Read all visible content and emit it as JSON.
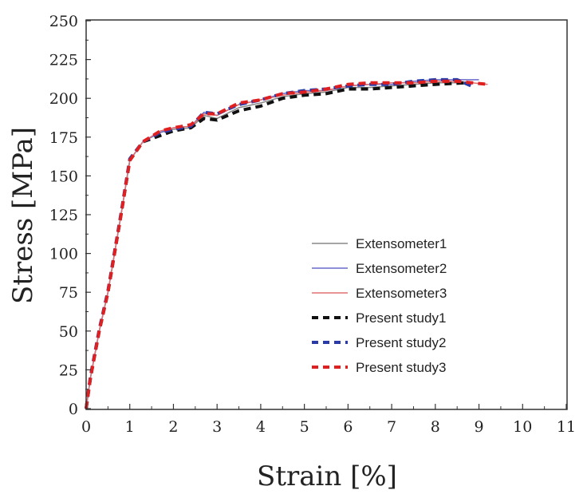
{
  "chart_data": {
    "type": "line",
    "xlabel": "Strain [%]",
    "ylabel": "Stress [MPa]",
    "xlim": [
      0,
      11
    ],
    "ylim": [
      0,
      250
    ],
    "xticks": [
      "0",
      "1",
      "2",
      "3",
      "4",
      "5",
      "6",
      "7",
      "8",
      "9",
      "10",
      "11"
    ],
    "yticks": [
      "0",
      "25",
      "50",
      "75",
      "100",
      "125",
      "150",
      "175",
      "200",
      "225",
      "250"
    ],
    "grid": false,
    "legend_position": "bottom-right",
    "series": [
      {
        "name": "Extensometer1",
        "color": "#888888",
        "style": "solid",
        "x": [
          0,
          0.1,
          0.3,
          0.5,
          0.8,
          1.0,
          1.3,
          1.7,
          2.0,
          2.4,
          2.7,
          3.0,
          3.5,
          4.0,
          4.5,
          5.0,
          5.5,
          6.0,
          6.5,
          7.0,
          7.5,
          8.0,
          8.7
        ],
        "y": [
          0,
          20,
          50,
          75,
          125,
          160,
          172,
          178,
          180,
          181,
          189,
          187,
          194,
          197,
          201,
          203,
          204,
          207,
          207,
          208,
          209,
          210,
          210
        ]
      },
      {
        "name": "Extensometer2",
        "color": "#6a6acc",
        "style": "solid",
        "x": [
          0,
          0.1,
          0.3,
          0.5,
          0.8,
          1.0,
          1.3,
          1.7,
          2.0,
          2.4,
          2.7,
          3.0,
          3.5,
          4.0,
          4.5,
          5.0,
          5.5,
          6.0,
          6.5,
          7.0,
          7.5,
          8.0,
          8.5,
          9.0
        ],
        "y": [
          0,
          20,
          50,
          75,
          125,
          160,
          172,
          178,
          181,
          182,
          191,
          189,
          196,
          199,
          203,
          205,
          205,
          208,
          209,
          209,
          211,
          212,
          212,
          212
        ]
      },
      {
        "name": "Extensometer3",
        "color": "#e07070",
        "style": "solid",
        "x": [
          0,
          0.1,
          0.3,
          0.5,
          0.8,
          1.0,
          1.3,
          1.7,
          2.0,
          2.4,
          2.7,
          3.0,
          3.5,
          4.0,
          4.5,
          5.0,
          5.5,
          6.0,
          6.5,
          7.0,
          7.5,
          8.0,
          8.5,
          9.2
        ],
        "y": [
          0,
          20,
          50,
          75,
          125,
          160,
          172,
          179,
          181,
          182,
          190,
          189,
          196,
          199,
          202,
          204,
          205,
          208,
          209,
          210,
          210,
          211,
          211,
          209
        ]
      },
      {
        "name": "Present study1",
        "color": "#111111",
        "style": "dashed",
        "x": [
          0,
          0.1,
          0.3,
          0.5,
          0.8,
          1.0,
          1.3,
          1.7,
          2.0,
          2.4,
          2.7,
          3.0,
          3.5,
          4.0,
          4.5,
          5.0,
          5.5,
          6.0,
          6.5,
          7.0,
          7.5,
          8.0,
          8.7
        ],
        "y": [
          0,
          20,
          50,
          75,
          125,
          160,
          172,
          176,
          179,
          181,
          187,
          186,
          192,
          195,
          200,
          202,
          203,
          206,
          206,
          207,
          208,
          209,
          210
        ]
      },
      {
        "name": "Present study2",
        "color": "#2a3aa8",
        "style": "dashed",
        "x": [
          0,
          0.1,
          0.3,
          0.5,
          0.8,
          1.0,
          1.3,
          1.7,
          2.0,
          2.4,
          2.7,
          3.0,
          3.5,
          4.0,
          4.5,
          5.0,
          5.5,
          6.0,
          6.5,
          7.0,
          7.5,
          8.0,
          8.5,
          8.9
        ],
        "y": [
          0,
          21,
          51,
          76,
          126,
          161,
          172,
          178,
          180,
          182,
          191,
          190,
          196,
          199,
          203,
          205,
          206,
          208,
          209,
          209,
          211,
          212,
          212,
          207
        ]
      },
      {
        "name": "Present study3",
        "color": "#e02020",
        "style": "dashed",
        "x": [
          0,
          0.1,
          0.3,
          0.5,
          0.8,
          1.0,
          1.3,
          1.7,
          2.0,
          2.4,
          2.7,
          3.0,
          3.5,
          4.0,
          4.5,
          5.0,
          5.5,
          6.0,
          6.5,
          7.0,
          7.5,
          8.0,
          8.5,
          9.2
        ],
        "y": [
          0,
          20,
          50,
          75,
          125,
          160,
          172,
          179,
          181,
          183,
          190,
          190,
          197,
          199,
          203,
          204,
          206,
          209,
          210,
          210,
          210,
          211,
          211,
          209
        ]
      }
    ]
  }
}
